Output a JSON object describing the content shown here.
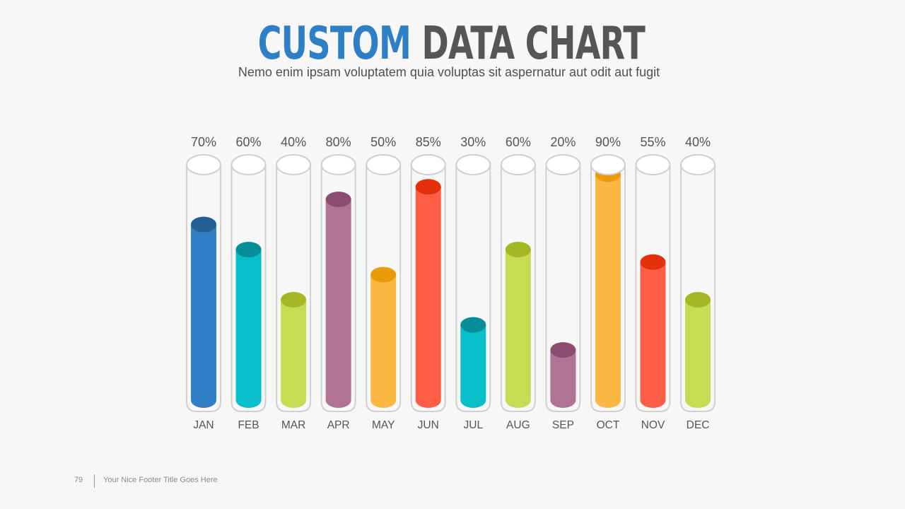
{
  "slide": {
    "title_accent": "CUSTOM",
    "title_rest": "DATA CHART",
    "subtitle": "Nemo enim ipsam voluptatem quia voluptas sit aspernatur aut odit aut fugit",
    "page_number": "79",
    "footer_text": "Your Nice Footer Title Goes Here"
  },
  "chart_data": {
    "type": "bar",
    "categories": [
      "JAN",
      "FEB",
      "MAR",
      "APR",
      "MAY",
      "JUN",
      "JUL",
      "AUG",
      "SEP",
      "OCT",
      "NOV",
      "DEC"
    ],
    "values": [
      70,
      60,
      40,
      80,
      50,
      85,
      30,
      60,
      20,
      90,
      55,
      40
    ],
    "value_labels": [
      "70%",
      "60%",
      "40%",
      "80%",
      "50%",
      "85%",
      "30%",
      "60%",
      "20%",
      "90%",
      "55%",
      "40%"
    ],
    "ylim": [
      0,
      100
    ],
    "fill_colors": [
      "#2e7fc6",
      "#06bfcb",
      "#c7dc52",
      "#b07393",
      "#fbb744",
      "#fd5e45",
      "#06bfcb",
      "#c7dc52",
      "#b07393",
      "#fbb744",
      "#fd5e45",
      "#c7dc52"
    ],
    "cap_colors": [
      "#245f93",
      "#058e98",
      "#a3b824",
      "#8a4d6f",
      "#e99b0a",
      "#e5300e",
      "#058e98",
      "#a3b824",
      "#8a4d6f",
      "#e99b0a",
      "#e5300e",
      "#a3b824"
    ],
    "tube_color": "#d0d0d0",
    "grid": false
  }
}
